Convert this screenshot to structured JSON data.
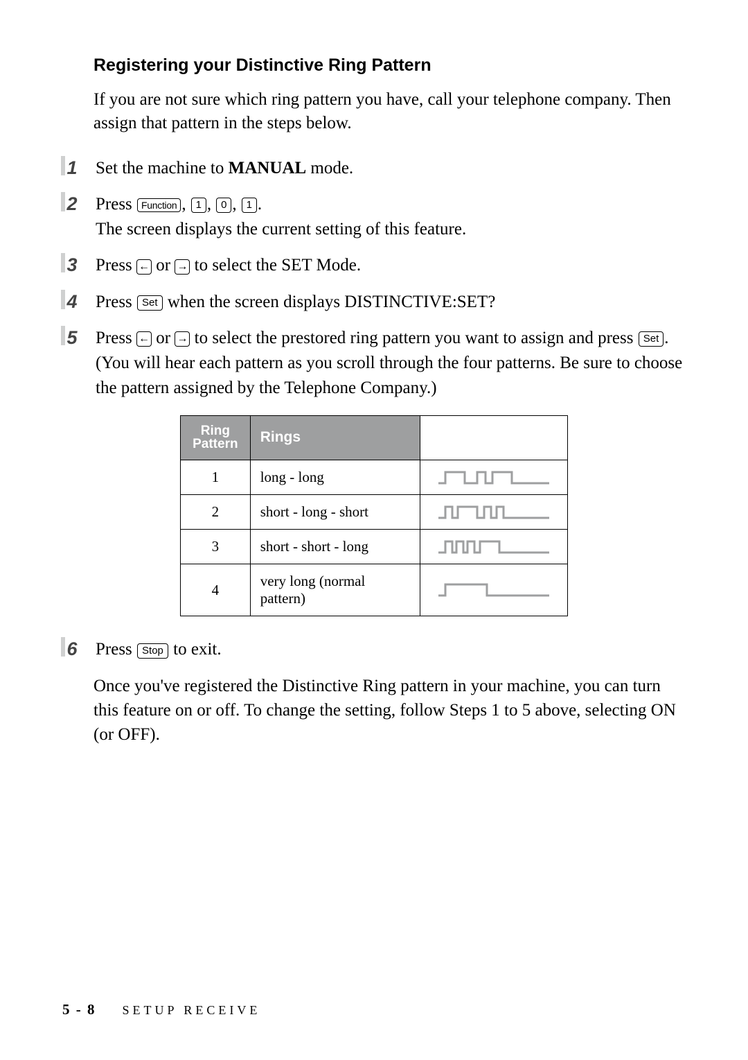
{
  "heading": "Registering your Distinctive Ring Pattern",
  "intro": "If you are not sure which ring pattern you have, call your telephone company. Then assign that pattern in the steps below.",
  "steps": {
    "s1": {
      "num": "1",
      "pre": "Set the machine to ",
      "bold": "MANUAL",
      "post": " mode."
    },
    "s2": {
      "num": "2",
      "press": "Press ",
      "keys": {
        "func": "Function",
        "k1": "1",
        "k2": "0",
        "k3": "1"
      },
      "line2": "The screen displays the current setting of this feature."
    },
    "s3": {
      "num": "3",
      "pre": "Press ",
      "arrowL": "←",
      "or": " or ",
      "arrowR": "→",
      "post": " to select the SET Mode."
    },
    "s4": {
      "num": "4",
      "pre": "Press ",
      "set": "Set",
      "post": " when the screen displays DISTINCTIVE:SET?"
    },
    "s5": {
      "num": "5",
      "pre": "Press ",
      "arrowL": "←",
      "or": " or ",
      "arrowR": "→",
      "mid": " to select the prestored ring pattern you want to assign and press ",
      "set": "Set",
      "post": ". (You will hear each pattern as you scroll through the four patterns. Be sure to choose the pattern assigned by the Telephone Company.)"
    },
    "s6": {
      "num": "6",
      "pre": "Press ",
      "stop": "Stop",
      "post": " to exit."
    }
  },
  "table": {
    "headers": {
      "rp1": "Ring",
      "rp2": "Pattern",
      "rings": "Rings"
    },
    "rows": [
      {
        "pattern": "1",
        "desc": "long - long",
        "wave": "long-long"
      },
      {
        "pattern": "2",
        "desc": "short - long - short",
        "wave": "short-long-short"
      },
      {
        "pattern": "3",
        "desc": "short - short - long",
        "wave": "short-short-long"
      },
      {
        "pattern": "4",
        "desc": "very long (normal pattern)",
        "wave": "very-long"
      }
    ],
    "wave_color": "#9e9fa0",
    "wave_stroke": 3
  },
  "closing": "Once you've registered the Distinctive Ring pattern in your machine, you can turn this feature on or off.  To change the setting, follow Steps 1 to 5 above, selecting ON (or OFF).",
  "footer": {
    "page": "5 - 8",
    "section": "SETUP RECEIVE"
  }
}
